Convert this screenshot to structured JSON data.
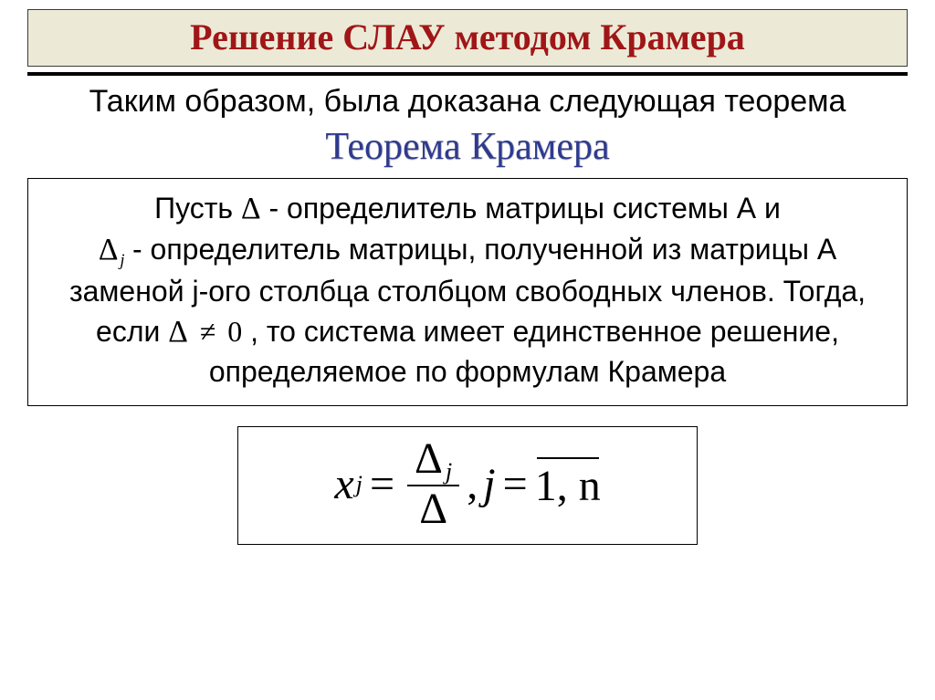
{
  "colors": {
    "title_bg": "#ecead6",
    "title_text": "#a01618",
    "rule": "#000000",
    "theorem_name": "#2e3a8f",
    "body_text": "#000000",
    "box_border": "#000000",
    "background": "#ffffff"
  },
  "typography": {
    "title_font": "Times New Roman",
    "title_size_pt": 30,
    "body_font": "Arial",
    "body_size_pt": 24,
    "theorem_name_font": "Times New Roman",
    "theorem_name_size_pt": 32,
    "formula_font": "Times New Roman",
    "formula_size_pt": 36
  },
  "title": "Решение СЛАУ методом Крамера",
  "lead": "Таким образом, была доказана следующая теорема",
  "theorem_name": "Теорема Крамера",
  "theorem": {
    "part1_a": "Пусть ",
    "delta": "Δ",
    "part1_b": " - определитель матрицы системы А и",
    "delta_sub": "j",
    "part2": " - определитель матрицы, полученной из матрицы А заменой j-ого столбца столбцом свободных членов. Тогда, если ",
    "cond_lhs": "Δ",
    "cond_op": "≠",
    "cond_rhs": "0",
    "part3": ", то система имеет единственное решение, определяемое по формулам Крамера"
  },
  "formula": {
    "x": "x",
    "x_sub": "j",
    "eq": "=",
    "num": "Δ",
    "num_sub": "j",
    "den": "Δ",
    "comma": ",",
    "jvar": "j",
    "eq2": "=",
    "range": "1, n"
  }
}
